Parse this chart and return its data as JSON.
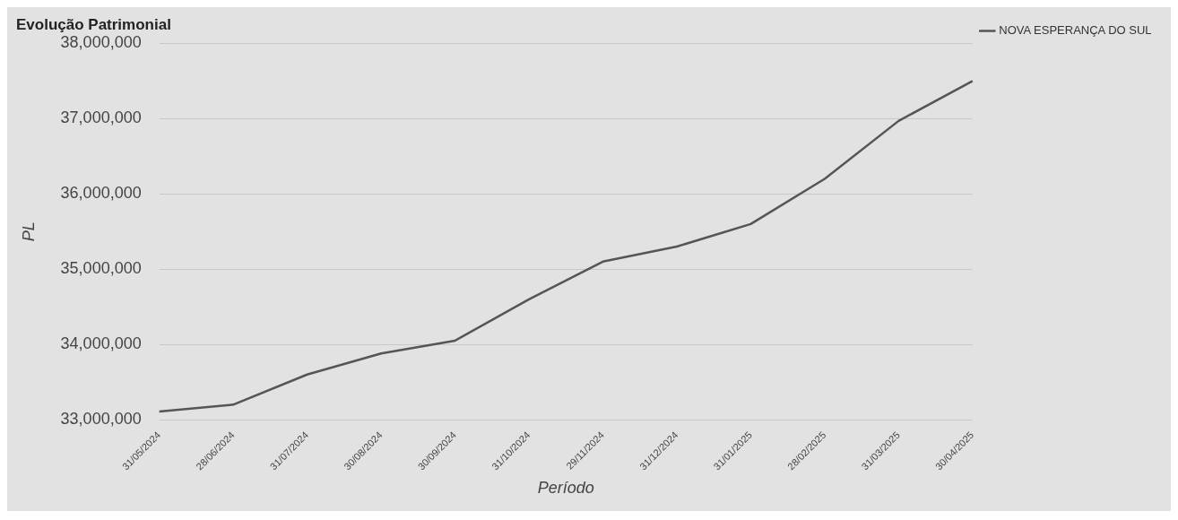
{
  "chart_data": {
    "type": "line",
    "title": "Evolução Patrimonial",
    "xlabel": "Período",
    "ylabel": "PL",
    "categories": [
      "31/05/2024",
      "28/06/2024",
      "31/07/2024",
      "30/08/2024",
      "30/09/2024",
      "31/10/2024",
      "29/11/2024",
      "31/12/2024",
      "31/01/2025",
      "28/02/2025",
      "31/03/2025",
      "30/04/2025"
    ],
    "series": [
      {
        "name": "NOVA ESPERANÇA DO SUL",
        "color": "#555555",
        "values": [
          33110000,
          33200000,
          33600000,
          33880000,
          34050000,
          34600000,
          35100000,
          35300000,
          35600000,
          36200000,
          36970000,
          37500000
        ]
      }
    ],
    "ylim": [
      33000000,
      38000000
    ],
    "yticks": [
      {
        "value": 33000000,
        "label": "33,000,000"
      },
      {
        "value": 34000000,
        "label": "34,000,000"
      },
      {
        "value": 35000000,
        "label": "35,000,000"
      },
      {
        "value": 36000000,
        "label": "36,000,000"
      },
      {
        "value": 37000000,
        "label": "37,000,000"
      },
      {
        "value": 38000000,
        "label": "38,000,000"
      }
    ],
    "grid": "y",
    "legend": "right",
    "marker": "none",
    "line_style": "solid"
  }
}
